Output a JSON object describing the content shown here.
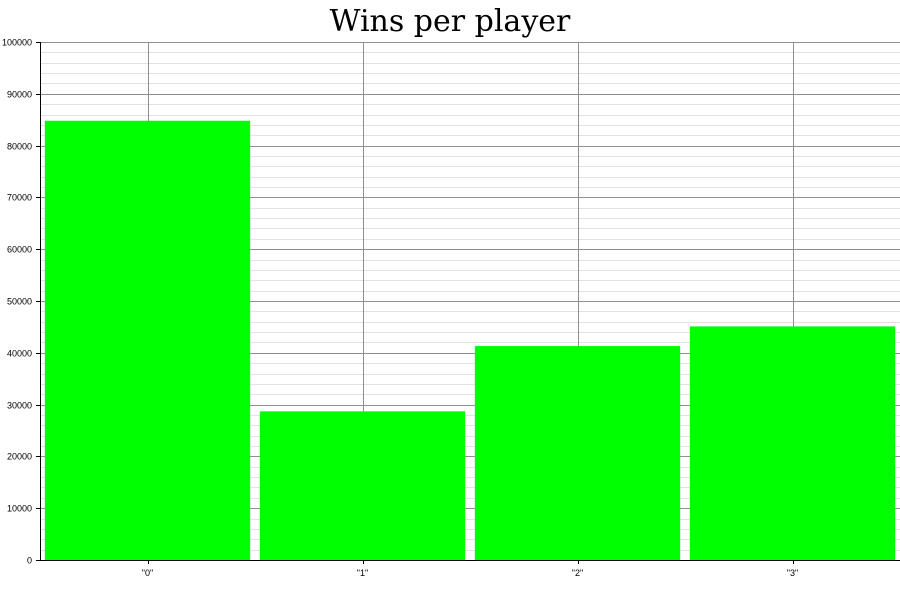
{
  "chart_data": {
    "type": "bar",
    "title": "Wins per player",
    "xlabel": "",
    "ylabel": "",
    "categories": [
      "\"0\"",
      "\"1\"",
      "\"2\"",
      "\"3\""
    ],
    "values": [
      84800,
      28700,
      41300,
      45100
    ],
    "ylim": [
      0,
      100000
    ],
    "yticks": [
      0,
      10000,
      20000,
      30000,
      40000,
      50000,
      60000,
      70000,
      80000,
      90000,
      100000
    ],
    "grid": true,
    "bar_color": "#00ff00"
  }
}
